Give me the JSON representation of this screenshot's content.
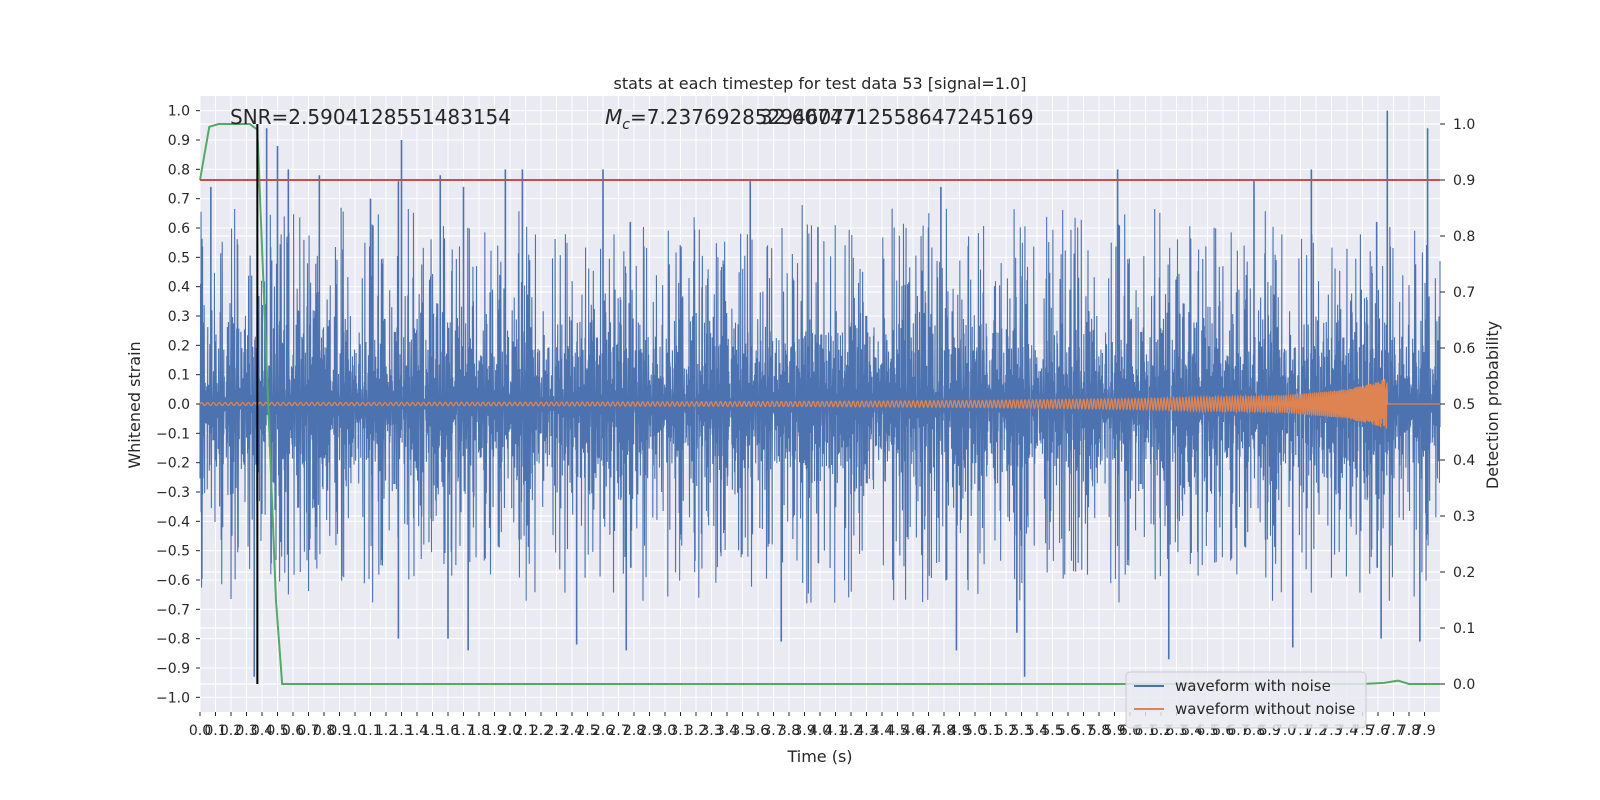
{
  "chart_data": {
    "type": "line",
    "title": "stats at each timestep for test data 53 [signal=1.0]",
    "xlabel": "Time (s)",
    "ylabel": "Whitened strain",
    "y2label": "Detection probability",
    "xlim": [
      0.0,
      8.0
    ],
    "ylim": [
      -1.05,
      1.05
    ],
    "y2lim": [
      -0.05,
      1.05
    ],
    "x_ticks": [
      0.0,
      0.1,
      0.2,
      0.3,
      0.4,
      0.5,
      0.6,
      0.7,
      0.8,
      0.9,
      1.0,
      1.1,
      1.2,
      1.3,
      1.4,
      1.5,
      1.6,
      1.7,
      1.8,
      1.9,
      2.0,
      2.1,
      2.2,
      2.3,
      2.4,
      2.5,
      2.6,
      2.7,
      2.8,
      2.9,
      3.0,
      3.1,
      3.2,
      3.3,
      3.4,
      3.5,
      3.6,
      3.7,
      3.8,
      3.9,
      4.0,
      4.1,
      4.2,
      4.3,
      4.4,
      4.5,
      4.6,
      4.7,
      4.8,
      4.9,
      5.0,
      5.1,
      5.2,
      5.3,
      5.4,
      5.5,
      5.6,
      5.7,
      5.8,
      5.9,
      6.0,
      6.1,
      6.2,
      6.3,
      6.4,
      6.5,
      6.6,
      6.7,
      6.8,
      6.9,
      7.0,
      7.1,
      7.2,
      7.3,
      7.4,
      7.5,
      7.6,
      7.7,
      7.8,
      7.9
    ],
    "y_ticks": [
      1.0,
      0.9,
      0.8,
      0.7,
      0.6,
      0.5,
      0.4,
      0.3,
      0.2,
      0.1,
      0.0,
      -0.1,
      -0.2,
      -0.3,
      -0.4,
      -0.5,
      -0.6,
      -0.7,
      -0.8,
      -0.9,
      -1.0
    ],
    "y2_ticks": [
      1.0,
      0.9,
      0.8,
      0.7,
      0.6,
      0.5,
      0.4,
      0.3,
      0.2,
      0.1,
      0.0
    ],
    "annotations": {
      "snr": "SNR=2.5904128551483154",
      "mc_symbol": "M",
      "mc_sub": "c",
      "mc_value": "=7.237692852946077",
      "mc_overlap": "32.6074712558647245169"
    },
    "threshold_y2": 0.9,
    "marker_x": 0.37,
    "legend": {
      "placement": "lower-right",
      "entries": [
        "waveform with noise",
        "waveform without noise"
      ]
    },
    "grid": true,
    "series": [
      {
        "name": "waveform with noise",
        "color": "#4c72b0",
        "axis": "left",
        "envelope": "noise band, typical |y| 0.35-0.6, spikes to 1.0 at x≈7.66 and -0.93 at x≈0.35",
        "spikes": [
          [
            0.07,
            0.74
          ],
          [
            0.35,
            -0.93
          ],
          [
            0.43,
            0.94
          ],
          [
            0.5,
            0.88
          ],
          [
            0.57,
            0.8
          ],
          [
            0.77,
            0.78
          ],
          [
            1.1,
            0.7
          ],
          [
            1.28,
            0.76
          ],
          [
            1.28,
            -0.8
          ],
          [
            1.3,
            0.9
          ],
          [
            1.55,
            0.78
          ],
          [
            1.6,
            -0.8
          ],
          [
            1.7,
            0.74
          ],
          [
            1.73,
            -0.84
          ],
          [
            1.97,
            0.8
          ],
          [
            2.08,
            0.8
          ],
          [
            2.43,
            -0.82
          ],
          [
            2.6,
            0.8
          ],
          [
            2.75,
            -0.84
          ],
          [
            3.55,
            0.76
          ],
          [
            3.75,
            -0.81
          ],
          [
            4.78,
            0.74
          ],
          [
            4.88,
            -0.84
          ],
          [
            5.32,
            -0.93
          ],
          [
            5.27,
            -0.78
          ],
          [
            5.92,
            0.8
          ],
          [
            6.25,
            -0.87
          ],
          [
            6.8,
            0.76
          ],
          [
            7.05,
            -0.83
          ],
          [
            7.17,
            0.8
          ],
          [
            7.62,
            -0.8
          ],
          [
            7.66,
            1.0
          ],
          [
            7.87,
            -0.81
          ],
          [
            7.92,
            0.94
          ]
        ]
      },
      {
        "name": "waveform without noise",
        "color": "#dd8452",
        "axis": "left",
        "model": "chirp: zero-mean oscillation, frequency and amplitude increasing over time, peak amplitude 0.09 at merger x≈7.66, ~0 afterward",
        "amplitude_samples": [
          [
            0.0,
            0.005
          ],
          [
            2.0,
            0.006
          ],
          [
            4.0,
            0.009
          ],
          [
            5.0,
            0.012
          ],
          [
            6.0,
            0.018
          ],
          [
            7.0,
            0.03
          ],
          [
            7.4,
            0.05
          ],
          [
            7.6,
            0.075
          ],
          [
            7.66,
            0.09
          ]
        ]
      },
      {
        "name": "detection probability",
        "color": "#55a868",
        "axis": "right",
        "points": [
          [
            0.0,
            0.9
          ],
          [
            0.06,
            0.995
          ],
          [
            0.12,
            1.0
          ],
          [
            0.25,
            1.0
          ],
          [
            0.32,
            1.0
          ],
          [
            0.37,
            0.99
          ],
          [
            0.44,
            0.5
          ],
          [
            0.49,
            0.15
          ],
          [
            0.53,
            0.0
          ],
          [
            1.0,
            0.0
          ],
          [
            4.0,
            0.0
          ],
          [
            7.0,
            0.0
          ],
          [
            7.5,
            0.0
          ],
          [
            7.64,
            0.002
          ],
          [
            7.73,
            0.006
          ],
          [
            7.8,
            0.0
          ],
          [
            8.0,
            0.0
          ]
        ]
      }
    ]
  }
}
